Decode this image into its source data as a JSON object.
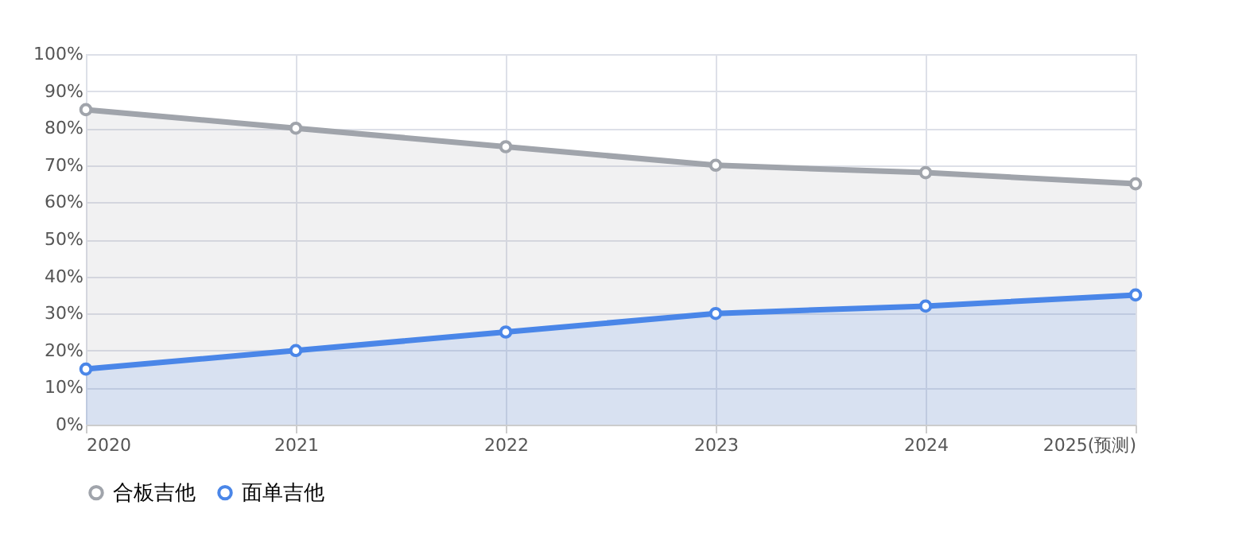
{
  "chart_data": {
    "type": "area",
    "categories": [
      "2020",
      "2021",
      "2022",
      "2023",
      "2024",
      "2025(预测)"
    ],
    "series": [
      {
        "name": "合板吉他",
        "color": "#a0a4ab",
        "values": [
          85,
          80,
          75,
          70,
          68,
          65
        ]
      },
      {
        "name": "面单吉他",
        "color": "#4a86e8",
        "values": [
          15,
          20,
          25,
          30,
          32,
          35
        ]
      }
    ],
    "ylim": [
      0,
      100
    ],
    "yticks": [
      {
        "value": 0,
        "label": "0%"
      },
      {
        "value": 10,
        "label": "10%"
      },
      {
        "value": 20,
        "label": "20%"
      },
      {
        "value": 30,
        "label": "30%"
      },
      {
        "value": 40,
        "label": "40%"
      },
      {
        "value": 50,
        "label": "50%"
      },
      {
        "value": 60,
        "label": "60%"
      },
      {
        "value": 70,
        "label": "70%"
      },
      {
        "value": 80,
        "label": "80%"
      },
      {
        "value": 90,
        "label": "90%"
      },
      {
        "value": 100,
        "label": "100%"
      }
    ],
    "grid": true,
    "legend": "bottom",
    "marker": "circle",
    "line_style": "solid"
  }
}
